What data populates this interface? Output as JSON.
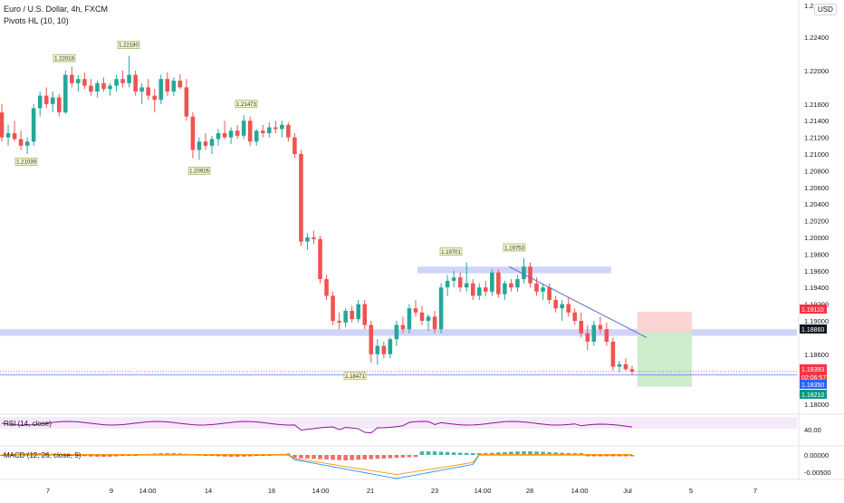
{
  "header": {
    "symbol_line": "Euro / U.S. Dollar, 4h, FXCM",
    "indicator_line": "Pivots HL (10, 10)",
    "currency": "USD"
  },
  "panes": {
    "rsi_label": "RSI (14, close)",
    "macd_label": "MACD (12, 26, close, 9)"
  },
  "colors": {
    "up": "#26a69a",
    "down": "#ef5350",
    "zone": "#c8cdf7",
    "trendline": "#5b6bd6",
    "rsi": "#8e1599",
    "macd_line": "#2196f3",
    "signal_line": "#ff9800",
    "stop_zone": "#fcd3d3",
    "target_zone": "#cdeccb"
  },
  "chart_data": [
    {
      "type": "candlestick",
      "title": "Euro / U.S. Dollar, 4h, FXCM",
      "ylim": [
        1.178,
        1.227
      ],
      "y_ticks": [
        "1.22400",
        "1.22000",
        "1.21600",
        "1.21400",
        "1.21200",
        "1.21000",
        "1.20800",
        "1.20600",
        "1.20400",
        "1.20200",
        "1.20000",
        "1.19800",
        "1.19600",
        "1.19400",
        "1.19200",
        "1.19000",
        "1.18600",
        "1.18000"
      ],
      "x_ticks": [
        "7",
        "9",
        "14:00",
        "14",
        "16",
        "14:00",
        "21",
        "23",
        "14:00",
        "28",
        "14:00",
        "Jul",
        "5",
        "7"
      ],
      "pivot_labels": [
        {
          "text": "1.22018",
          "price": 1.2202,
          "kind": "high"
        },
        {
          "text": "1.22180",
          "price": 1.2218,
          "kind": "high"
        },
        {
          "text": "1.21473",
          "price": 1.2147,
          "kind": "high"
        },
        {
          "text": "1.21039",
          "price": 1.2104,
          "kind": "low"
        },
        {
          "text": "1.20926",
          "price": 1.2093,
          "kind": "low"
        },
        {
          "text": "1.19701",
          "price": 1.197,
          "kind": "high"
        },
        {
          "text": "1.19753",
          "price": 1.1975,
          "kind": "high"
        },
        {
          "text": "1.18471",
          "price": 1.1847,
          "kind": "low"
        }
      ],
      "price_tags": [
        {
          "text": "1.19110",
          "price": 1.1911,
          "color": "#f23645"
        },
        {
          "text": "1.18860",
          "price": 1.1886,
          "color": "#131722"
        },
        {
          "text": "1.18393",
          "price": 1.18393,
          "color": "#f23645"
        },
        {
          "text": "02:06:57",
          "price": 1.18393,
          "color": "#f23645",
          "offset": 1
        },
        {
          "text": "1.18350",
          "price": 1.1835,
          "color": "#2962ff"
        },
        {
          "text": "1.18210",
          "price": 1.1821,
          "color": "#089981"
        }
      ],
      "zones": [
        {
          "name": "resistance",
          "from": 1.1957,
          "to": 1.1965
        },
        {
          "name": "support",
          "from": 1.1882,
          "to": 1.189
        }
      ],
      "position": {
        "stop": 1.1911,
        "entry": 1.1886,
        "target": 1.1821
      },
      "candles": [
        [
          1.215,
          1.216,
          1.2115,
          1.212
        ],
        [
          1.212,
          1.2135,
          1.211,
          1.2125
        ],
        [
          1.2125,
          1.214,
          1.2115,
          1.2118
        ],
        [
          1.2118,
          1.2128,
          1.2105,
          1.211
        ],
        [
          1.211,
          1.212,
          1.21,
          1.2115
        ],
        [
          1.2115,
          1.216,
          1.211,
          1.2155
        ],
        [
          1.2155,
          1.2175,
          1.2145,
          1.217
        ],
        [
          1.217,
          1.218,
          1.2155,
          1.216
        ],
        [
          1.216,
          1.2175,
          1.215,
          1.2168
        ],
        [
          1.2168,
          1.2172,
          1.2145,
          1.215
        ],
        [
          1.215,
          1.22,
          1.2148,
          1.2195
        ],
        [
          1.2195,
          1.2205,
          1.218,
          1.2185
        ],
        [
          1.2185,
          1.2195,
          1.2175,
          1.219
        ],
        [
          1.219,
          1.2198,
          1.2178,
          1.2182
        ],
        [
          1.2182,
          1.219,
          1.217,
          1.2175
        ],
        [
          1.2175,
          1.2188,
          1.2168,
          1.2185
        ],
        [
          1.2185,
          1.2192,
          1.2175,
          1.2178
        ],
        [
          1.2178,
          1.2185,
          1.217,
          1.2182
        ],
        [
          1.2182,
          1.2195,
          1.2175,
          1.219
        ],
        [
          1.219,
          1.22,
          1.218,
          1.2185
        ],
        [
          1.2185,
          1.2218,
          1.218,
          1.2195
        ],
        [
          1.2195,
          1.22,
          1.217,
          1.2175
        ],
        [
          1.2175,
          1.2185,
          1.216,
          1.218
        ],
        [
          1.218,
          1.219,
          1.2165,
          1.217
        ],
        [
          1.217,
          1.2178,
          1.215,
          1.2165
        ],
        [
          1.2165,
          1.2195,
          1.216,
          1.219
        ],
        [
          1.219,
          1.2198,
          1.217,
          1.2175
        ],
        [
          1.2175,
          1.2192,
          1.217,
          1.2188
        ],
        [
          1.2188,
          1.2196,
          1.2178,
          1.218
        ],
        [
          1.218,
          1.219,
          1.214,
          1.2145
        ],
        [
          1.2145,
          1.215,
          1.2095,
          1.2105
        ],
        [
          1.2105,
          1.212,
          1.2093,
          1.2115
        ],
        [
          1.2115,
          1.2125,
          1.2105,
          1.211
        ],
        [
          1.211,
          1.2122,
          1.21,
          1.2118
        ],
        [
          1.2118,
          1.213,
          1.211,
          1.2125
        ],
        [
          1.2125,
          1.214,
          1.2118,
          1.212
        ],
        [
          1.212,
          1.2132,
          1.2112,
          1.2128
        ],
        [
          1.2128,
          1.2135,
          1.2118,
          1.2122
        ],
        [
          1.2122,
          1.2147,
          1.2118,
          1.214
        ],
        [
          1.214,
          1.2145,
          1.211,
          1.2115
        ],
        [
          1.2115,
          1.213,
          1.211,
          1.2128
        ],
        [
          1.2128,
          1.2135,
          1.212,
          1.2125
        ],
        [
          1.2125,
          1.2138,
          1.212,
          1.2132
        ],
        [
          1.2132,
          1.214,
          1.2125,
          1.213
        ],
        [
          1.213,
          1.214,
          1.212,
          1.2135
        ],
        [
          1.2135,
          1.2138,
          1.2115,
          1.212
        ],
        [
          1.212,
          1.2125,
          1.2095,
          1.21
        ],
        [
          1.21,
          1.2105,
          1.199,
          1.1995
        ],
        [
          1.1995,
          1.2005,
          1.1985,
          1.2
        ],
        [
          1.2,
          1.2008,
          1.1992,
          1.1998
        ],
        [
          1.1998,
          1.2002,
          1.1945,
          1.195
        ],
        [
          1.195,
          1.1955,
          1.1925,
          1.193
        ],
        [
          1.193,
          1.1935,
          1.1895,
          1.19
        ],
        [
          1.19,
          1.191,
          1.189,
          1.1898
        ],
        [
          1.1898,
          1.1915,
          1.1892,
          1.1912
        ],
        [
          1.1912,
          1.1918,
          1.1898,
          1.1902
        ],
        [
          1.1902,
          1.1925,
          1.1898,
          1.192
        ],
        [
          1.192,
          1.1925,
          1.189,
          1.1895
        ],
        [
          1.1895,
          1.19,
          1.185,
          1.186
        ],
        [
          1.186,
          1.1878,
          1.1847,
          1.187
        ],
        [
          1.187,
          1.1875,
          1.1855,
          1.186
        ],
        [
          1.186,
          1.188,
          1.1855,
          1.1878
        ],
        [
          1.1878,
          1.19,
          1.187,
          1.1895
        ],
        [
          1.1895,
          1.1905,
          1.1885,
          1.189
        ],
        [
          1.189,
          1.192,
          1.1885,
          1.1915
        ],
        [
          1.1915,
          1.1925,
          1.1905,
          1.191
        ],
        [
          1.191,
          1.1918,
          1.1895,
          1.19
        ],
        [
          1.19,
          1.1908,
          1.1888,
          1.1905
        ],
        [
          1.1905,
          1.1912,
          1.1885,
          1.189
        ],
        [
          1.189,
          1.1945,
          1.1885,
          1.194
        ],
        [
          1.194,
          1.1955,
          1.193,
          1.1948
        ],
        [
          1.1948,
          1.196,
          1.194,
          1.1952
        ],
        [
          1.1952,
          1.1958,
          1.1935,
          1.194
        ],
        [
          1.194,
          1.197,
          1.1935,
          1.1945
        ],
        [
          1.1945,
          1.195,
          1.1925,
          1.193
        ],
        [
          1.193,
          1.1945,
          1.1925,
          1.194
        ],
        [
          1.194,
          1.1948,
          1.193,
          1.1935
        ],
        [
          1.1935,
          1.1962,
          1.193,
          1.1958
        ],
        [
          1.1958,
          1.1962,
          1.1928,
          1.1932
        ],
        [
          1.1932,
          1.1948,
          1.1925,
          1.1945
        ],
        [
          1.1945,
          1.195,
          1.1935,
          1.194
        ],
        [
          1.194,
          1.1955,
          1.1935,
          1.195
        ],
        [
          1.195,
          1.1975,
          1.1945,
          1.1965
        ],
        [
          1.1965,
          1.197,
          1.194,
          1.1945
        ],
        [
          1.1945,
          1.1952,
          1.193,
          1.1935
        ],
        [
          1.1935,
          1.1945,
          1.1925,
          1.194
        ],
        [
          1.194,
          1.1945,
          1.192,
          1.1925
        ],
        [
          1.1925,
          1.193,
          1.191,
          1.1915
        ],
        [
          1.1915,
          1.1925,
          1.19,
          1.192
        ],
        [
          1.192,
          1.1928,
          1.1905,
          1.191
        ],
        [
          1.191,
          1.1915,
          1.1895,
          1.19
        ],
        [
          1.19,
          1.191,
          1.188,
          1.1885
        ],
        [
          1.1885,
          1.1895,
          1.1865,
          1.1875
        ],
        [
          1.1875,
          1.19,
          1.187,
          1.1895
        ],
        [
          1.1895,
          1.1905,
          1.1885,
          1.189
        ],
        [
          1.189,
          1.1898,
          1.187,
          1.1875
        ],
        [
          1.1875,
          1.188,
          1.184,
          1.1845
        ],
        [
          1.1845,
          1.1852,
          1.1838,
          1.1848
        ],
        [
          1.1848,
          1.1855,
          1.184,
          1.1842
        ],
        [
          1.1842,
          1.1846,
          1.1835,
          1.1839
        ]
      ]
    },
    {
      "type": "line",
      "name": "RSI (14, close)",
      "ylim": [
        0,
        100
      ],
      "y_ticks": [
        "40.00"
      ]
    },
    {
      "type": "histogram",
      "name": "MACD (12, 26, close, 9)",
      "y_ticks": [
        "0.00000",
        "-0.00500"
      ]
    }
  ]
}
